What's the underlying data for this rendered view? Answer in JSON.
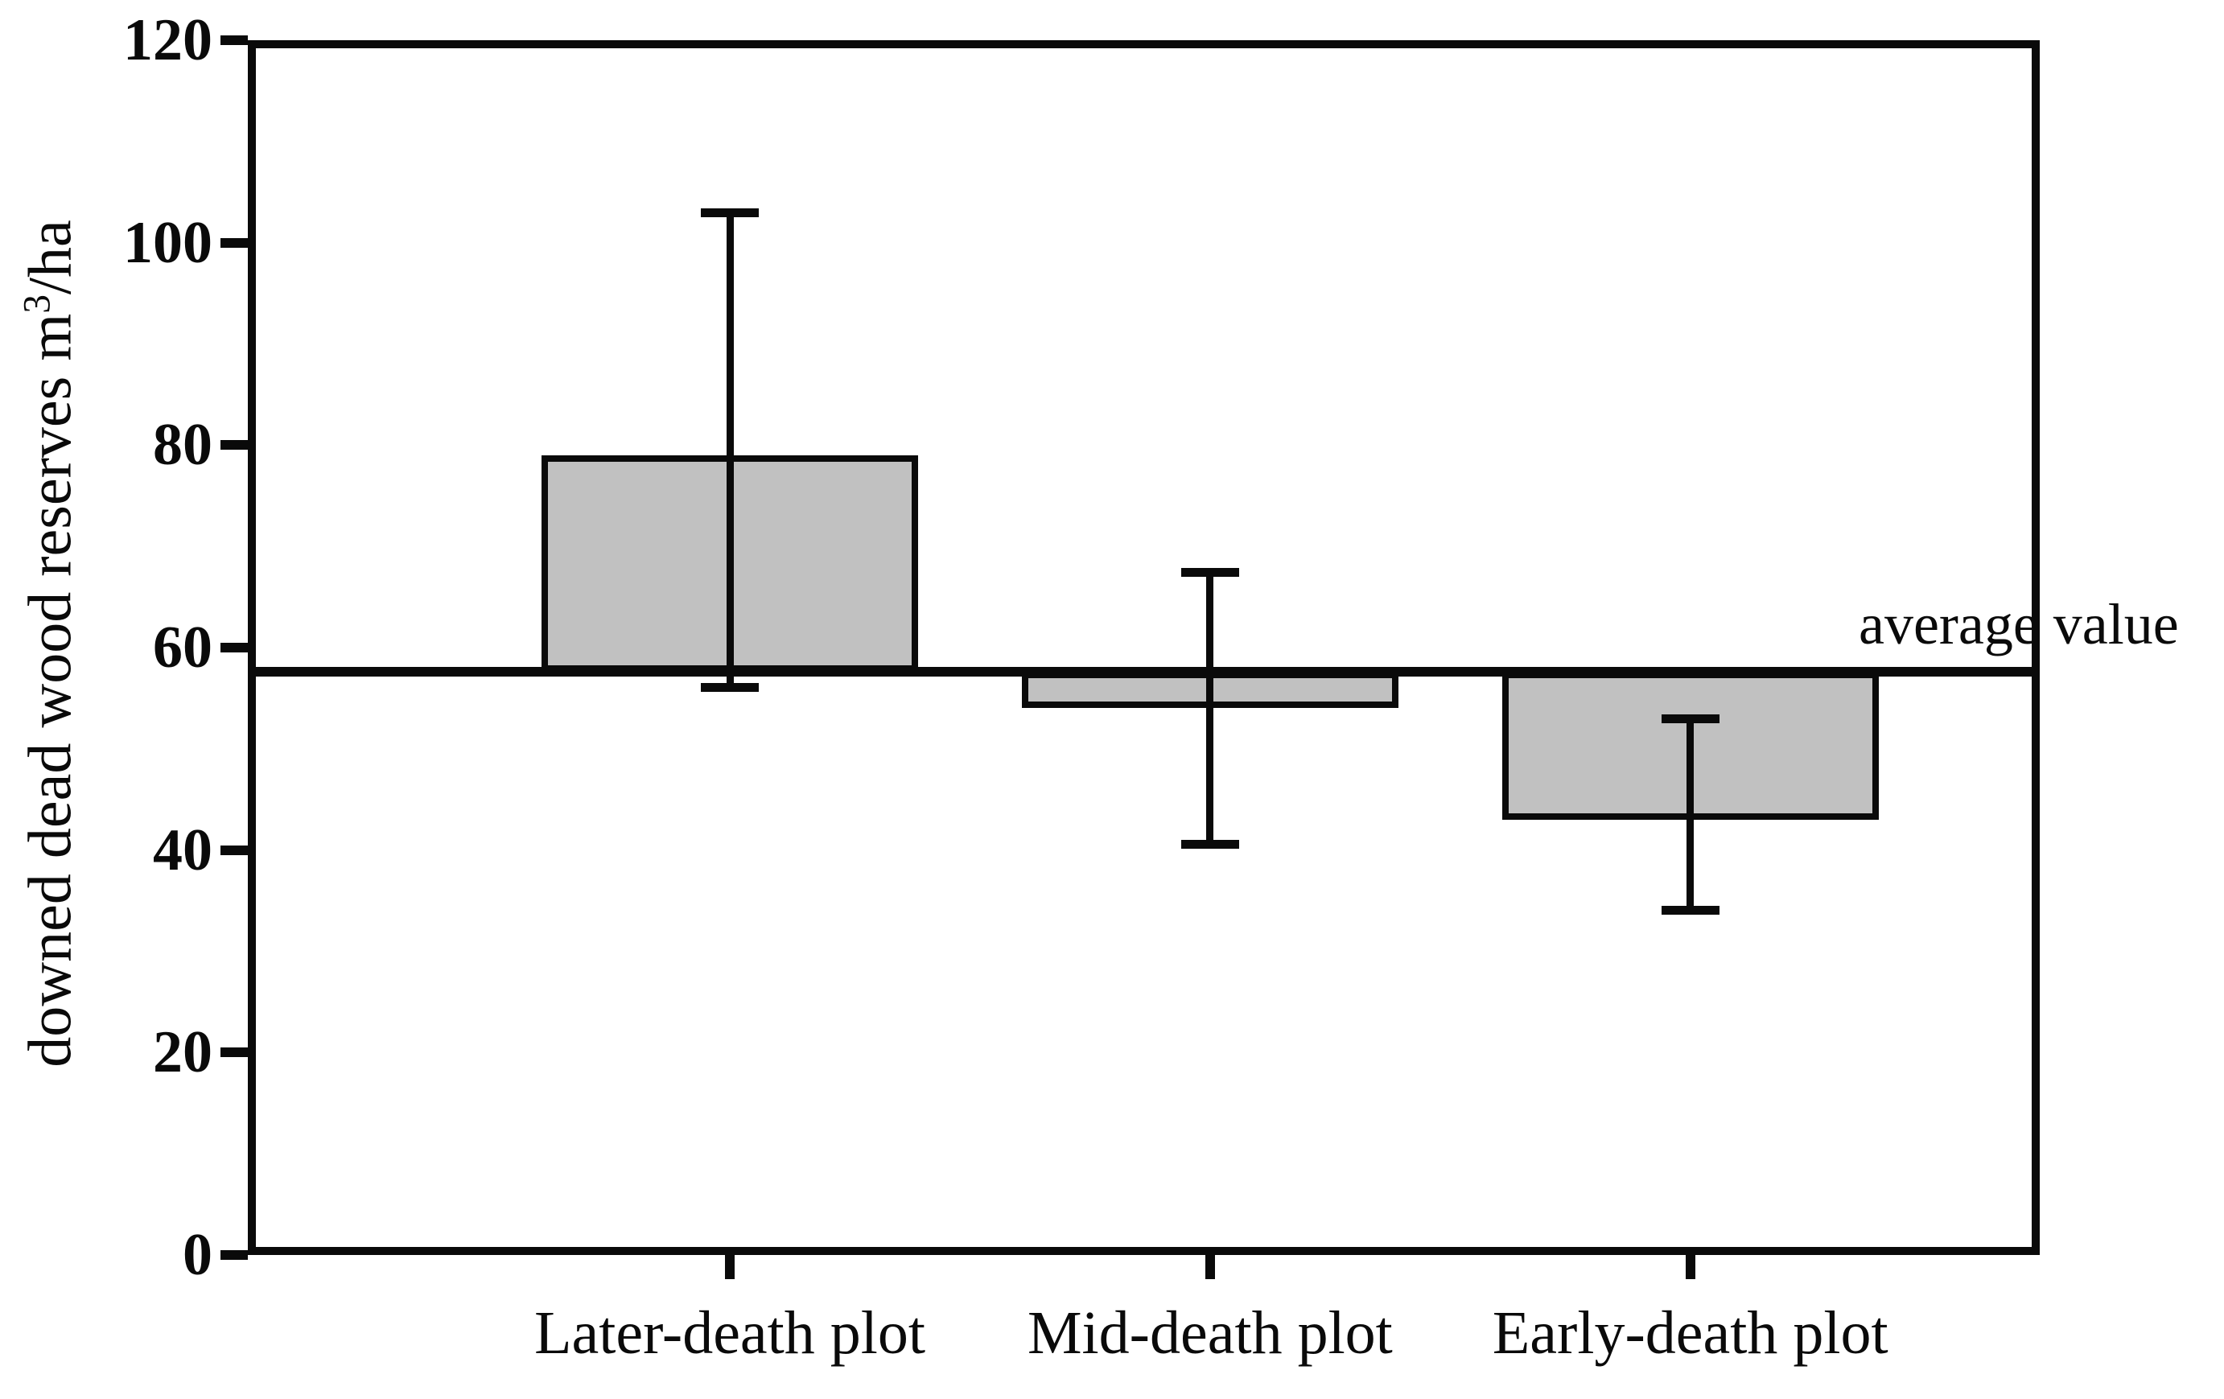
{
  "figure": {
    "background": "#ffffff",
    "bar_fill": "#c1c1c1",
    "line_color": "#0a0a0a"
  },
  "chart_data": {
    "type": "bar",
    "categories": [
      "Later-death plot",
      "Mid-death plot",
      "Early-death plot"
    ],
    "values": [
      79,
      54,
      43
    ],
    "error_low": [
      56,
      40.5,
      34
    ],
    "error_high": [
      103,
      67.5,
      53
    ],
    "baseline_value": 57.6,
    "baseline_label": "average value",
    "title": "",
    "xlabel": "",
    "ylabel": "downed dead wood reserves m³/ha",
    "ylabel_parts": {
      "prefix": "downed dead wood reserves m",
      "sup": "3",
      "suffix": "/ha"
    },
    "ylim": [
      0,
      120
    ],
    "yticks": [
      0,
      20,
      40,
      60,
      80,
      100,
      120
    ],
    "grid": false,
    "legend": "none",
    "bars_drawn_from_baseline": true,
    "bar_centers_frac": [
      0.269,
      0.537,
      0.805
    ],
    "bar_width_frac": 0.21
  }
}
